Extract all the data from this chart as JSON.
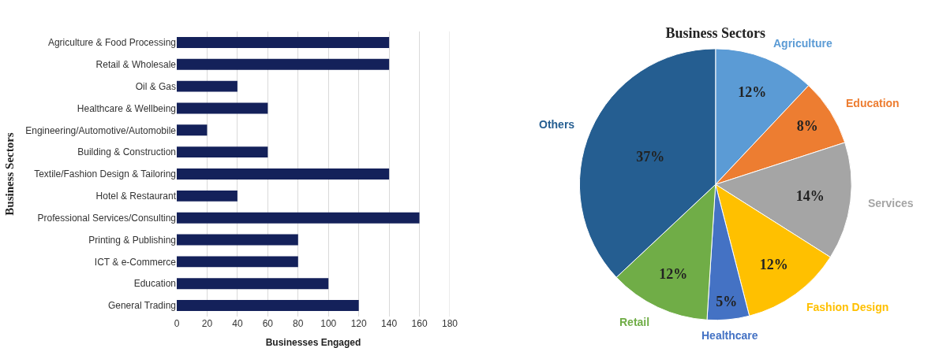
{
  "chart_data": [
    {
      "type": "bar",
      "orientation": "horizontal",
      "ylabel": "Business Sectors",
      "xlabel": "Businesses Engaged",
      "categories": [
        "Agriculture & Food Processing",
        "Retail & Wholesale",
        "Oil & Gas",
        "Healthcare & Wellbeing",
        "Engineering/Automotive/Automobile",
        "Building & Construction",
        "Textile/Fashion Design & Tailoring",
        "Hotel & Restaurant",
        "Professional Services/Consulting",
        "Printing & Publishing",
        "ICT & e-Commerce",
        "Education",
        "General Trading"
      ],
      "values": [
        140,
        140,
        40,
        60,
        20,
        60,
        140,
        40,
        160,
        80,
        80,
        100,
        120
      ],
      "color": "#14215a",
      "xlim": [
        0,
        180
      ],
      "xticks": [
        0,
        20,
        40,
        60,
        80,
        100,
        120,
        140,
        160,
        180
      ],
      "grid": "x",
      "legend": false
    },
    {
      "type": "pie",
      "title": "Business Sectors",
      "categories": [
        "Agriculture",
        "Education",
        "Services",
        "Fashion Design",
        "Healthcare",
        "Retail",
        "Others"
      ],
      "values": [
        12,
        8,
        14,
        12,
        5,
        12,
        37
      ],
      "value_labels": [
        "12%",
        "8%",
        "14%",
        "12%",
        "5%",
        "12%",
        "37%"
      ],
      "colors": [
        "#5b9bd5",
        "#ed7d31",
        "#a5a5a5",
        "#ffc000",
        "#4472c4",
        "#70ad47",
        "#255e91"
      ],
      "legend": false
    }
  ]
}
